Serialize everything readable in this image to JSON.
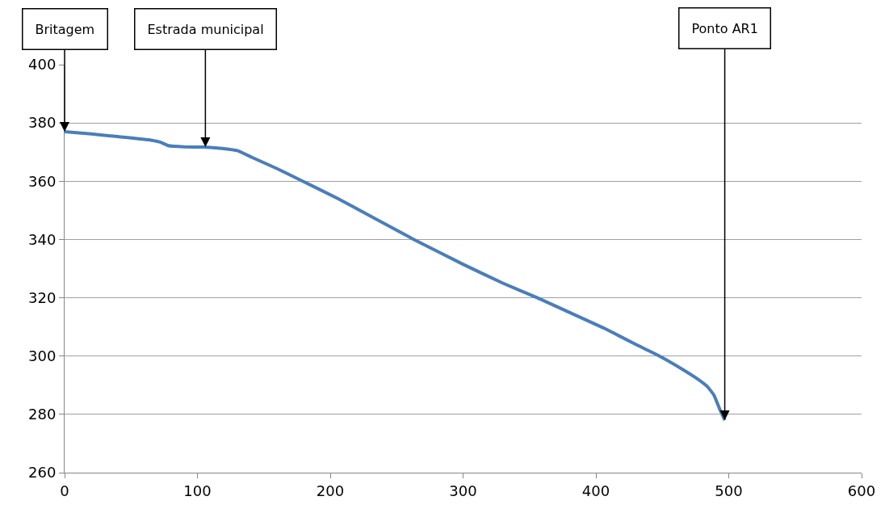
{
  "chart_data": {
    "type": "line",
    "x": [
      0,
      20,
      40,
      65,
      72,
      78,
      90,
      105,
      120,
      130,
      141,
      160,
      178,
      206,
      263,
      300,
      330,
      356,
      380,
      406,
      430,
      447,
      465,
      477,
      484,
      489,
      493,
      497
    ],
    "series": [
      {
        "color": "#4a7ebb",
        "values": [
          377,
          376.2,
          375.3,
          374.1,
          373.4,
          372.2,
          371.8,
          371.7,
          371.2,
          370.5,
          368.2,
          364.3,
          360.3,
          354,
          340,
          331.5,
          325,
          320,
          315,
          309.6,
          304,
          300.2,
          295.5,
          292,
          289.5,
          286.5,
          282,
          278
        ]
      }
    ],
    "xlim": [
      0,
      600
    ],
    "xticks": [
      0,
      100,
      200,
      300,
      400,
      500,
      600
    ],
    "ylim": [
      260,
      400
    ],
    "yticks": [
      260,
      280,
      300,
      320,
      340,
      360,
      380,
      400
    ],
    "grid": "y",
    "marker": "none",
    "line_style": "solid",
    "annotations": [
      {
        "text": "Britagem",
        "x": 0,
        "y": 377
      },
      {
        "text": "Estrada municipal",
        "x": 106,
        "y": 371.7
      },
      {
        "text": "Ponto AR1",
        "x": 497,
        "y": 278
      }
    ]
  }
}
